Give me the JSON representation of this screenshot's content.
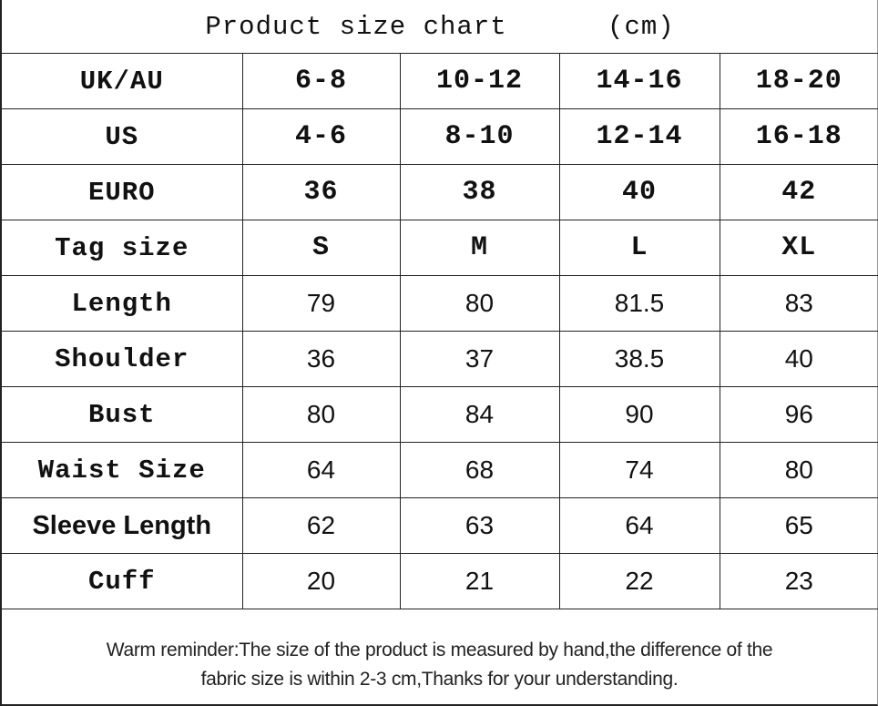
{
  "title": "Product size chart      (cm)",
  "rows": [
    {
      "label": "UK/AU",
      "values": [
        "6-8",
        "10-12",
        "14-16",
        "18-20"
      ]
    },
    {
      "label": "US",
      "values": [
        "4-6",
        "8-10",
        "12-14",
        "16-18"
      ]
    },
    {
      "label": "EURO",
      "values": [
        "36",
        "38",
        "40",
        "42"
      ]
    },
    {
      "label": "Tag size",
      "values": [
        "S",
        "M",
        "L",
        "XL"
      ]
    },
    {
      "label": "Length",
      "values": [
        "79",
        "80",
        "81.5",
        "83"
      ]
    },
    {
      "label": "Shoulder",
      "values": [
        "36",
        "37",
        "38.5",
        "40"
      ]
    },
    {
      "label": "Bust",
      "values": [
        "80",
        "84",
        "90",
        "96"
      ]
    },
    {
      "label": "Waist Size",
      "values": [
        "64",
        "68",
        "74",
        "80"
      ]
    },
    {
      "label": "Sleeve Length",
      "values": [
        "62",
        "63",
        "64",
        "65"
      ]
    },
    {
      "label": "Cuff",
      "values": [
        "20",
        "21",
        "22",
        "23"
      ]
    }
  ],
  "reminder_line1": "Warm reminder:The size of the product is measured by hand,the difference of the",
  "reminder_line2": "fabric size is within 2-3 cm,Thanks for your understanding."
}
